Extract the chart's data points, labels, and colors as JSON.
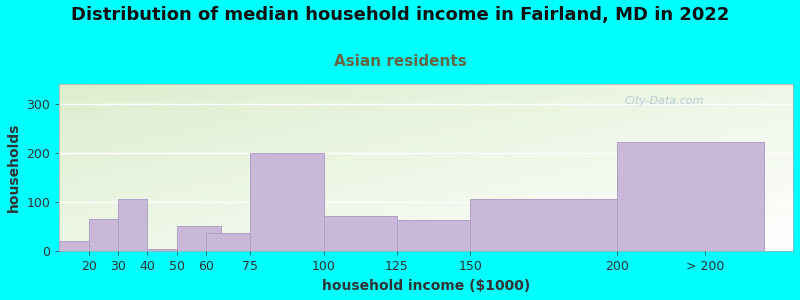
{
  "title": "Distribution of median household income in Fairland, MD in 2022",
  "subtitle": "Asian residents",
  "xlabel": "household income ($1000)",
  "ylabel": "households",
  "background_color": "#00FFFF",
  "plot_bg_green": "#ddeece",
  "plot_bg_white": "#ffffff",
  "bar_color": "#c9b8d8",
  "bar_edge_color": "#b0a0c8",
  "categories": [
    "20",
    "30",
    "40",
    "50",
    "60",
    "75",
    "100",
    "125",
    "150",
    "200",
    "> 200"
  ],
  "values": [
    22,
    65,
    107,
    5,
    52,
    37,
    200,
    72,
    63,
    107,
    222
  ],
  "bar_widths": [
    10,
    10,
    10,
    10,
    15,
    25,
    25,
    25,
    50,
    50,
    50
  ],
  "bar_lefts": [
    10,
    20,
    30,
    40,
    50,
    60,
    75,
    100,
    125,
    150,
    200
  ],
  "xtick_positions": [
    20,
    30,
    40,
    50,
    60,
    75,
    100,
    125,
    150,
    200,
    230
  ],
  "xlim_left": 10,
  "xlim_right": 260,
  "ylim": [
    0,
    340
  ],
  "yticks": [
    0,
    100,
    200,
    300
  ],
  "watermark": "City-Data.com",
  "title_fontsize": 13,
  "subtitle_fontsize": 11,
  "subtitle_color": "#666644",
  "axis_label_fontsize": 10,
  "tick_fontsize": 9,
  "title_color": "#111111"
}
